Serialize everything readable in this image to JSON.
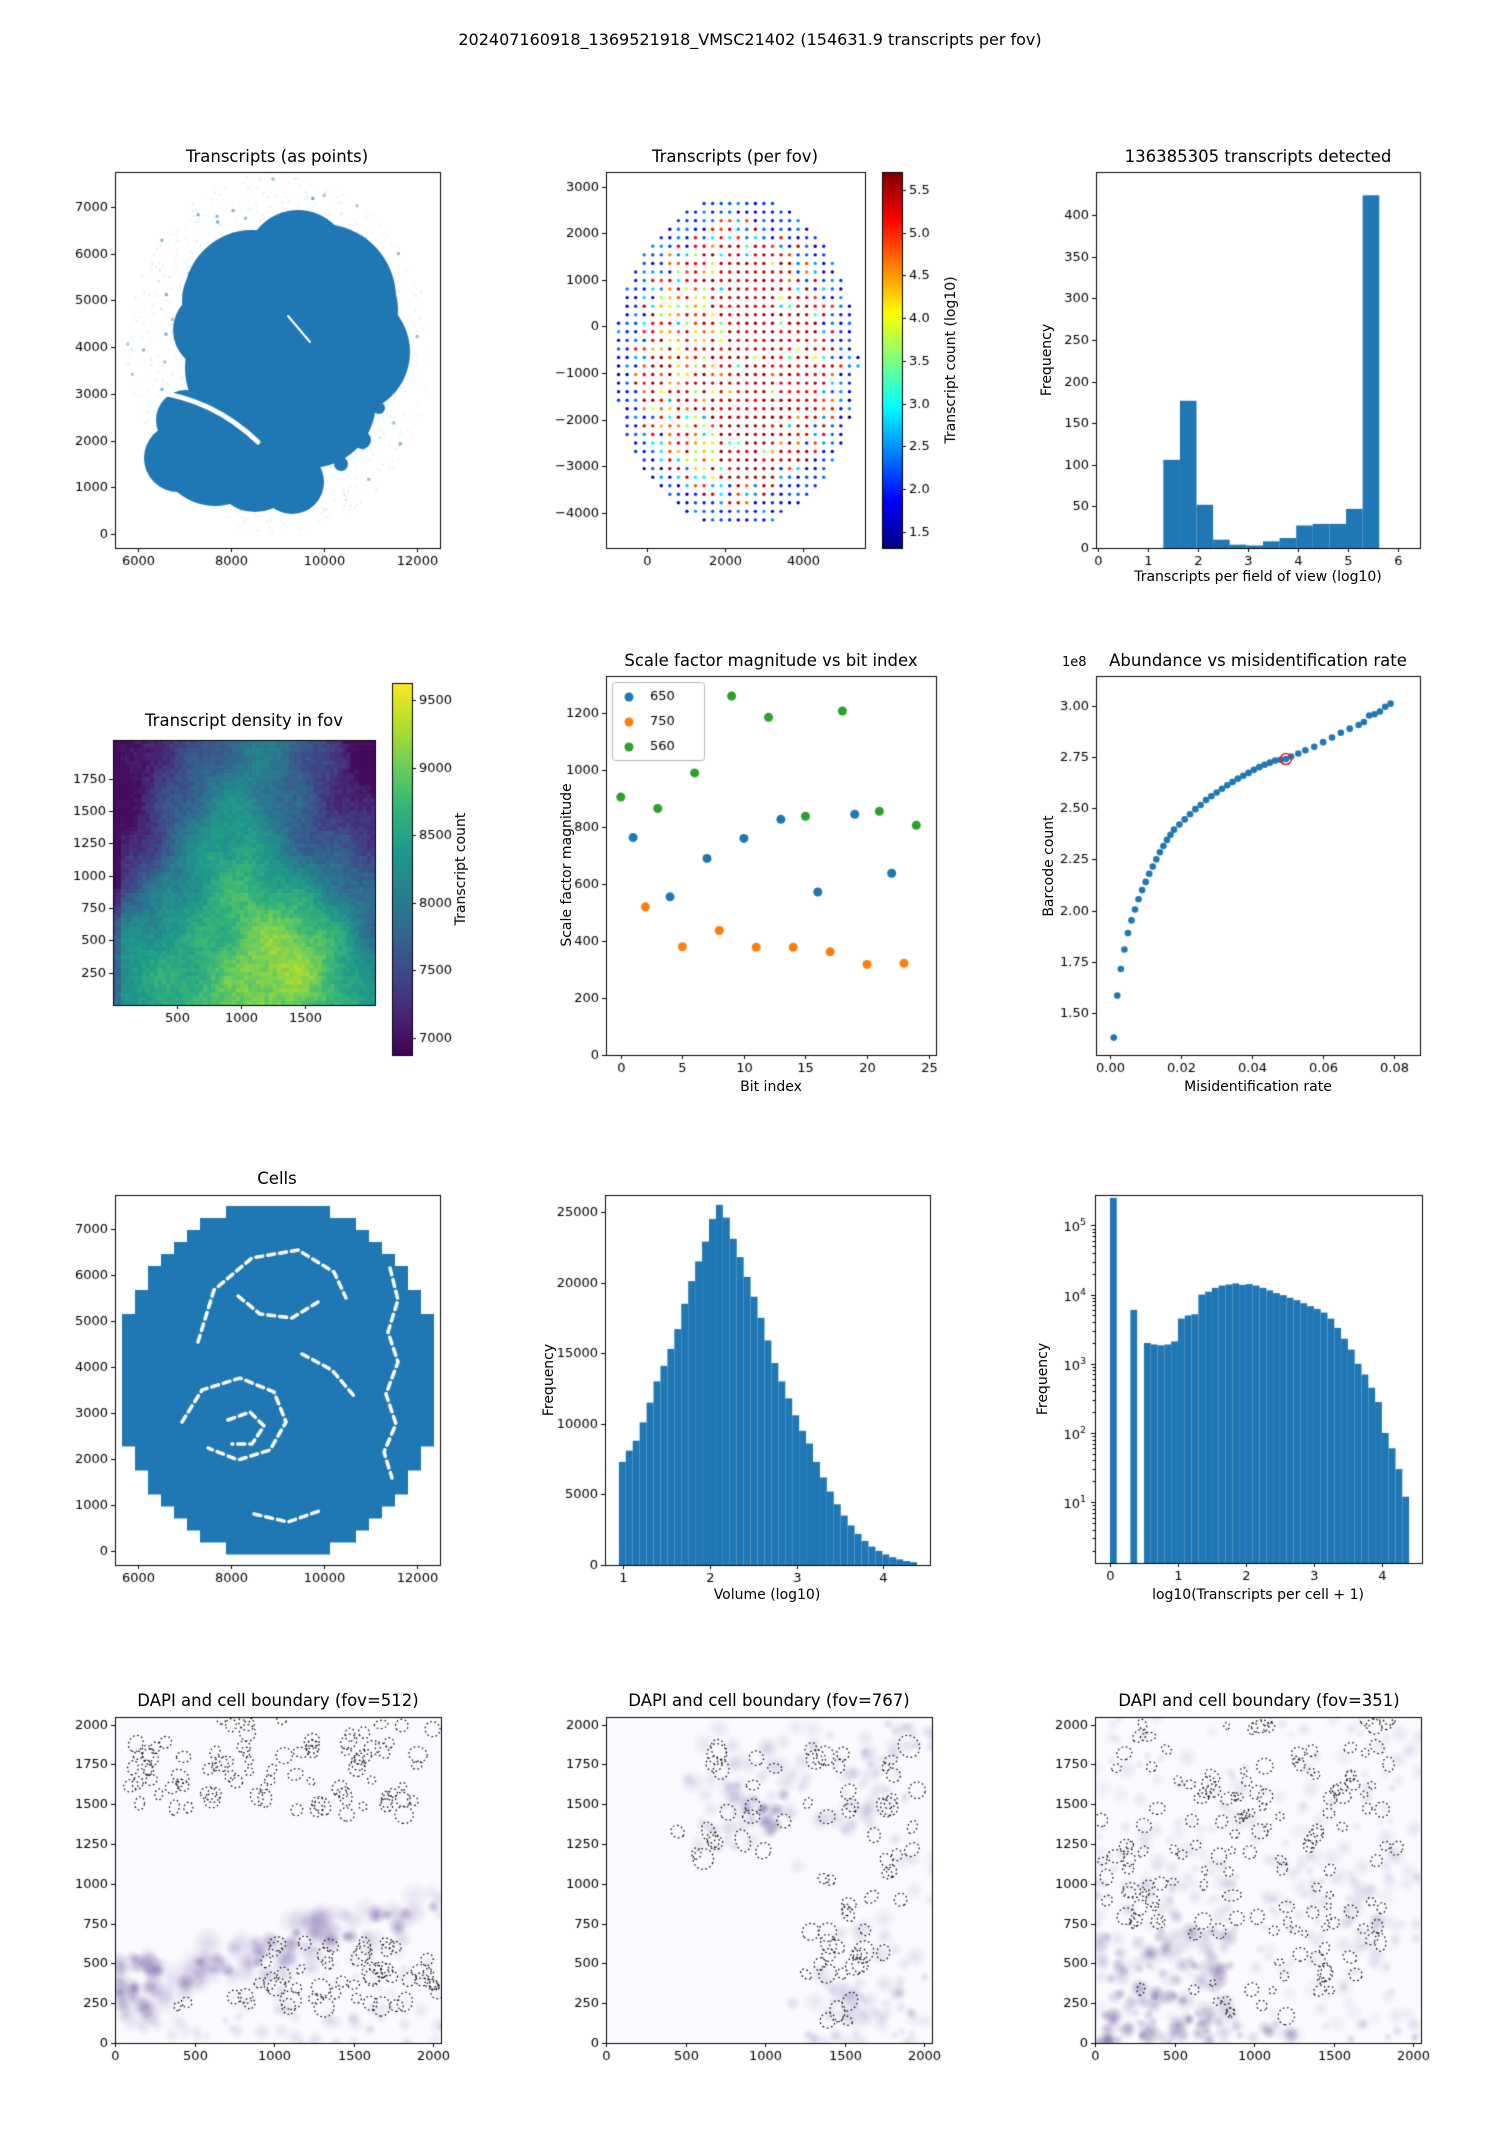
{
  "figure": {
    "title": "202407160918_1369521918_VMSC21402 (154631.9 transcripts per fov)",
    "background": "#ffffff",
    "accent": "#1f77b4"
  },
  "chart_data": [
    {
      "id": "transcripts_points",
      "type": "scatter",
      "title": "Transcripts (as points)",
      "marker_color": "#1f77b4",
      "xlim": [
        5500,
        12500
      ],
      "ylim": [
        -300,
        7750
      ],
      "xticks": {
        "values": [
          6000,
          8000,
          10000,
          12000
        ],
        "labels": [
          "6000",
          "8000",
          "10000",
          "12000"
        ]
      },
      "yticks": {
        "values": [
          0,
          1000,
          2000,
          3000,
          4000,
          5000,
          6000,
          7000
        ],
        "labels": [
          "0",
          "1000",
          "2000",
          "3000",
          "4000",
          "5000",
          "6000",
          "7000"
        ]
      }
    },
    {
      "id": "transcripts_per_fov",
      "type": "scatter",
      "title": "Transcripts (per fov)",
      "xlim": [
        -1050,
        5590
      ],
      "ylim": [
        -4760,
        3320
      ],
      "xticks": {
        "values": [
          0,
          2000,
          4000
        ],
        "labels": [
          "0",
          "2000",
          "4000"
        ]
      },
      "yticks": {
        "values": [
          3000,
          2000,
          1000,
          0,
          -1000,
          -2000,
          -3000,
          -4000
        ],
        "labels": [
          "3000",
          "2000",
          "1000",
          "0",
          "−1000",
          "−2000",
          "−3000",
          "−4000"
        ]
      },
      "colorbar": {
        "label": "Transcript count (log10)",
        "cmap": "jet",
        "range": [
          1.31,
          5.71
        ],
        "ticks": {
          "values": [
            1.5,
            2.0,
            2.5,
            3.0,
            3.5,
            4.0,
            4.5,
            5.0,
            5.5
          ],
          "labels": [
            "1.5",
            "2.0",
            "2.5",
            "3.0",
            "3.5",
            "4.0",
            "4.5",
            "5.0",
            "5.5"
          ]
        }
      }
    },
    {
      "id": "transcripts_hist",
      "type": "bar",
      "title": "136385305 transcripts detected",
      "xlabel": "Transcripts per field of view (log10)",
      "ylabel": "Frequency",
      "bin_start": 1.3,
      "bin_width": 0.3333,
      "values": [
        106,
        177,
        52,
        10,
        4,
        3,
        8,
        12,
        27,
        29,
        29,
        47,
        424
      ],
      "xlim": [
        -0.05,
        6.45
      ],
      "ylim": [
        0,
        452
      ],
      "xticks": {
        "values": [
          0,
          1,
          2,
          3,
          4,
          5,
          6
        ],
        "labels": [
          "0",
          "1",
          "2",
          "3",
          "4",
          "5",
          "6"
        ]
      },
      "yticks": {
        "values": [
          0,
          50,
          100,
          150,
          200,
          250,
          300,
          350,
          400
        ],
        "labels": [
          "0",
          "50",
          "100",
          "150",
          "200",
          "250",
          "300",
          "350",
          "400"
        ]
      }
    },
    {
      "id": "transcript_density",
      "type": "heatmap",
      "title": "Transcript density in fov",
      "xlim": [
        0,
        2048
      ],
      "ylim": [
        0,
        2048
      ],
      "value_range": [
        6875,
        9625
      ],
      "xticks": {
        "values": [
          500,
          1000,
          1500
        ],
        "labels": [
          "500",
          "1000",
          "1500"
        ]
      },
      "yticks": {
        "values": [
          250,
          500,
          750,
          1000,
          1250,
          1500,
          1750
        ],
        "labels": [
          "250",
          "500",
          "750",
          "1000",
          "1250",
          "1500",
          "1750"
        ]
      },
      "colorbar": {
        "label": "Transcript count",
        "cmap": "viridis",
        "range": [
          6875,
          9625
        ],
        "ticks": {
          "values": [
            7000,
            7500,
            8000,
            8500,
            9000,
            9500
          ],
          "labels": [
            "7000",
            "7500",
            "8000",
            "8500",
            "9000",
            "9500"
          ]
        }
      }
    },
    {
      "id": "scale_factor",
      "type": "scatter",
      "title": "Scale factor magnitude vs bit index",
      "xlabel": "Bit index",
      "ylabel": "Scale factor magnitude",
      "legend_position": "upper left",
      "xlim": [
        -1.2,
        25.6
      ],
      "ylim": [
        0,
        1330
      ],
      "xticks": {
        "values": [
          0,
          5,
          10,
          15,
          20,
          25
        ],
        "labels": [
          "0",
          "5",
          "10",
          "15",
          "20",
          "25"
        ]
      },
      "yticks": {
        "values": [
          0,
          200,
          400,
          600,
          800,
          1000,
          1200
        ],
        "labels": [
          "0",
          "200",
          "400",
          "600",
          "800",
          "1000",
          "1200"
        ]
      },
      "series": [
        {
          "name": "650",
          "color": "#1f77b4",
          "x": [
            1,
            4,
            7,
            10,
            13,
            16,
            19,
            22
          ],
          "y": [
            763,
            555,
            690,
            760,
            827,
            572,
            845,
            638
          ]
        },
        {
          "name": "750",
          "color": "#ff7f0e",
          "x": [
            2,
            5,
            8,
            11,
            14,
            17,
            20,
            23
          ],
          "y": [
            520,
            380,
            437,
            378,
            378,
            362,
            318,
            322
          ]
        },
        {
          "name": "560",
          "color": "#2ca02c",
          "x": [
            0,
            3,
            6,
            9,
            12,
            15,
            18,
            21,
            24
          ],
          "y": [
            905,
            865,
            990,
            1260,
            1185,
            838,
            1207,
            855,
            806
          ]
        }
      ]
    },
    {
      "id": "abundance",
      "type": "scatter",
      "title": "Abundance vs misidentification rate",
      "xlabel": "Misidentification rate",
      "ylabel": "Barcode count",
      "offset_text": "1e8",
      "marker_color": "#1f77b4",
      "highlight_color": "#d62728",
      "highlight_x": 0.0495,
      "xlim": [
        -0.004,
        0.0873
      ],
      "ylim": [
        1.295,
        3.145
      ],
      "xticks": {
        "values": [
          0,
          0.02,
          0.04,
          0.06,
          0.08
        ],
        "labels": [
          "0.00",
          "0.02",
          "0.04",
          "0.06",
          "0.08"
        ]
      },
      "yticks": {
        "values": [
          1.5,
          1.75,
          2.0,
          2.25,
          2.5,
          2.75,
          3.0
        ],
        "labels": [
          "1.50",
          "1.75",
          "2.00",
          "2.25",
          "2.50",
          "2.75",
          "3.00"
        ]
      },
      "points": [
        [
          0.001,
          1.38
        ],
        [
          0.002,
          1.585
        ],
        [
          0.003,
          1.715
        ],
        [
          0.004,
          1.81
        ],
        [
          0.005,
          1.89
        ],
        [
          0.006,
          1.952
        ],
        [
          0.007,
          2.005
        ],
        [
          0.008,
          2.055
        ],
        [
          0.009,
          2.1
        ],
        [
          0.01,
          2.14
        ],
        [
          0.011,
          2.18
        ],
        [
          0.012,
          2.215
        ],
        [
          0.013,
          2.25
        ],
        [
          0.014,
          2.285
        ],
        [
          0.015,
          2.315
        ],
        [
          0.016,
          2.345
        ],
        [
          0.017,
          2.37
        ],
        [
          0.018,
          2.395
        ],
        [
          0.0195,
          2.42
        ],
        [
          0.021,
          2.445
        ],
        [
          0.0225,
          2.47
        ],
        [
          0.024,
          2.495
        ],
        [
          0.0255,
          2.515
        ],
        [
          0.027,
          2.54
        ],
        [
          0.0285,
          2.558
        ],
        [
          0.03,
          2.576
        ],
        [
          0.0315,
          2.595
        ],
        [
          0.033,
          2.612
        ],
        [
          0.0345,
          2.628
        ],
        [
          0.036,
          2.644
        ],
        [
          0.0375,
          2.658
        ],
        [
          0.039,
          2.672
        ],
        [
          0.0405,
          2.687
        ],
        [
          0.042,
          2.7
        ],
        [
          0.0435,
          2.712
        ],
        [
          0.045,
          2.722
        ],
        [
          0.0465,
          2.732
        ],
        [
          0.048,
          2.736
        ],
        [
          0.0495,
          2.74
        ],
        [
          0.051,
          2.752
        ],
        [
          0.053,
          2.767
        ],
        [
          0.055,
          2.782
        ],
        [
          0.0575,
          2.8
        ],
        [
          0.06,
          2.822
        ],
        [
          0.0625,
          2.845
        ],
        [
          0.065,
          2.868
        ],
        [
          0.0675,
          2.888
        ],
        [
          0.07,
          2.906
        ],
        [
          0.0715,
          2.92
        ],
        [
          0.073,
          2.952
        ],
        [
          0.0745,
          2.958
        ],
        [
          0.076,
          2.972
        ],
        [
          0.0775,
          2.995
        ],
        [
          0.079,
          3.01
        ]
      ]
    },
    {
      "id": "cells",
      "type": "scatter",
      "title": "Cells",
      "marker_color": "#1f77b4",
      "xlim": [
        5500,
        12500
      ],
      "ylim": [
        -300,
        7750
      ],
      "xticks": {
        "values": [
          6000,
          8000,
          10000,
          12000
        ],
        "labels": [
          "6000",
          "8000",
          "10000",
          "12000"
        ]
      },
      "yticks": {
        "values": [
          0,
          1000,
          2000,
          3000,
          4000,
          5000,
          6000,
          7000
        ],
        "labels": [
          "0",
          "1000",
          "2000",
          "3000",
          "4000",
          "5000",
          "6000",
          "7000"
        ]
      }
    },
    {
      "id": "volume_hist",
      "type": "bar",
      "xlabel": "Volume (log10)",
      "ylabel": "Frequency",
      "bin_start": 0.95,
      "bin_width": 0.08,
      "values": [
        7300,
        8100,
        8800,
        10100,
        11500,
        13000,
        14100,
        15300,
        16700,
        18500,
        20100,
        21500,
        22900,
        24500,
        25500,
        24600,
        23100,
        21800,
        20400,
        19000,
        17500,
        15900,
        14300,
        13000,
        11800,
        10600,
        9500,
        8600,
        7300,
        6200,
        5200,
        4300,
        3500,
        2800,
        2200,
        1700,
        1300,
        1000,
        750,
        550,
        400,
        280,
        200
      ],
      "xlim": [
        0.79,
        4.54
      ],
      "ylim": [
        0,
        26200
      ],
      "xticks": {
        "values": [
          1,
          2,
          3,
          4
        ],
        "labels": [
          "1",
          "2",
          "3",
          "4"
        ]
      },
      "yticks": {
        "values": [
          0,
          5000,
          10000,
          15000,
          20000,
          25000
        ],
        "labels": [
          "0",
          "5000",
          "10000",
          "15000",
          "20000",
          "25000"
        ]
      }
    },
    {
      "id": "transcripts_per_cell_hist",
      "type": "bar",
      "xlabel": "log10(Transcripts per cell + 1)",
      "ylabel": "Frequency",
      "log_y": true,
      "bin_start": 0.0,
      "bin_width": 0.1,
      "values": [
        250000,
        0,
        0,
        6000,
        0,
        2000,
        1900,
        1850,
        1900,
        2100,
        4500,
        5000,
        5200,
        10000,
        11000,
        12500,
        13500,
        14000,
        14500,
        13800,
        14200,
        13500,
        12500,
        11500,
        10500,
        9800,
        9000,
        8300,
        7500,
        6800,
        6200,
        5500,
        4500,
        3300,
        2300,
        1600,
        1000,
        700,
        450,
        280,
        100,
        60,
        30,
        12
      ],
      "xlim": [
        -0.22,
        4.59
      ],
      "ylim": [
        1.32,
        275000
      ],
      "xticks": {
        "values": [
          0,
          1,
          2,
          3,
          4
        ],
        "labels": [
          "0",
          "1",
          "2",
          "3",
          "4"
        ]
      },
      "ytick_exponents": [
        1,
        2,
        3,
        4,
        5
      ]
    },
    {
      "id": "dapi_512",
      "type": "image",
      "title": "DAPI and cell boundary (fov=512)",
      "fov": 512,
      "xlim": [
        0,
        2048
      ],
      "ylim": [
        0,
        2048
      ],
      "xticks": {
        "values": [
          0,
          500,
          1000,
          1500,
          2000
        ],
        "labels": [
          "0",
          "500",
          "1000",
          "1500",
          "2000"
        ]
      },
      "yticks": {
        "values": [
          0,
          250,
          500,
          750,
          1000,
          1250,
          1500,
          1750,
          2000
        ],
        "labels": [
          "0",
          "250",
          "500",
          "750",
          "1000",
          "1250",
          "1500",
          "1750",
          "2000"
        ]
      }
    },
    {
      "id": "dapi_767",
      "type": "image",
      "title": "DAPI and cell boundary (fov=767)",
      "fov": 767,
      "xlim": [
        0,
        2048
      ],
      "ylim": [
        0,
        2048
      ],
      "xticks": {
        "values": [
          0,
          500,
          1000,
          1500,
          2000
        ],
        "labels": [
          "0",
          "500",
          "1000",
          "1500",
          "2000"
        ]
      },
      "yticks": {
        "values": [
          0,
          250,
          500,
          750,
          1000,
          1250,
          1500,
          1750,
          2000
        ],
        "labels": [
          "0",
          "250",
          "500",
          "750",
          "1000",
          "1250",
          "1500",
          "1750",
          "2000"
        ]
      }
    },
    {
      "id": "dapi_351",
      "type": "image",
      "title": "DAPI and cell boundary (fov=351)",
      "fov": 351,
      "xlim": [
        0,
        2048
      ],
      "ylim": [
        0,
        2048
      ],
      "xticks": {
        "values": [
          0,
          500,
          1000,
          1500,
          2000
        ],
        "labels": [
          "0",
          "500",
          "1000",
          "1500",
          "2000"
        ]
      },
      "yticks": {
        "values": [
          0,
          250,
          500,
          750,
          1000,
          1250,
          1500,
          1750,
          2000
        ],
        "labels": [
          "0",
          "250",
          "500",
          "750",
          "1000",
          "1250",
          "1500",
          "1750",
          "2000"
        ]
      }
    }
  ]
}
